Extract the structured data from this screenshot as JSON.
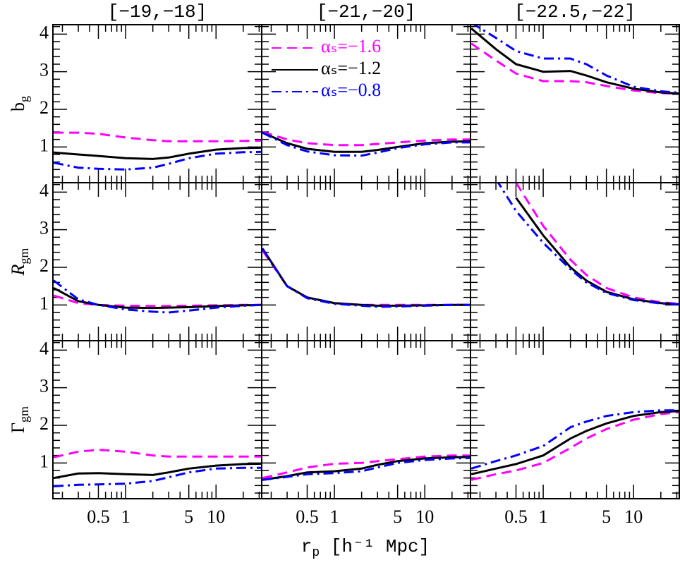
{
  "x_label": {
    "text": "r",
    "sub": "p",
    "rest": " [h⁻¹ Mpc]"
  },
  "chart_data": [
    {
      "type": "line",
      "title": "[−19,−18]",
      "ylabel": {
        "text": "b",
        "sub": "g"
      },
      "xlog": true,
      "xlim": [
        0.157,
        32
      ],
      "ylim": [
        0.05,
        4.25
      ],
      "xticks": [
        0.5,
        1,
        5,
        10
      ],
      "xminorticks": [
        0.2,
        0.3,
        0.4,
        0.6,
        0.7,
        0.8,
        0.9,
        2,
        3,
        4,
        6,
        7,
        8,
        9,
        20,
        30
      ],
      "yticks": [
        1,
        2,
        3,
        4
      ],
      "yminorticks": [
        0.2,
        0.4,
        0.6,
        0.8,
        1.2,
        1.4,
        1.6,
        1.8,
        2.2,
        2.4,
        2.6,
        2.8,
        3.2,
        3.4,
        3.6,
        3.8,
        4.2
      ],
      "x": [
        0.16,
        0.3,
        0.5,
        1,
        2,
        3,
        5,
        10,
        20,
        32
      ],
      "series": [
        {
          "color": "#ff00ff",
          "linestyle": "dashed",
          "values": [
            1.38,
            1.38,
            1.35,
            1.25,
            1.18,
            1.15,
            1.15,
            1.15,
            1.16,
            1.17
          ]
        },
        {
          "color": "#000000",
          "linestyle": "solid",
          "values": [
            0.85,
            0.8,
            0.76,
            0.7,
            0.68,
            0.72,
            0.82,
            0.93,
            0.97,
            0.98
          ]
        },
        {
          "color": "#0000ff",
          "linestyle": "dashdot",
          "values": [
            0.58,
            0.45,
            0.42,
            0.4,
            0.45,
            0.55,
            0.7,
            0.82,
            0.86,
            0.87
          ]
        }
      ]
    },
    {
      "type": "line",
      "title": "[−21,−20]",
      "legend": "upper left",
      "xlog": true,
      "xlim": [
        0.157,
        32
      ],
      "ylim": [
        0.05,
        4.25
      ],
      "xticks": [
        0.5,
        1,
        5,
        10
      ],
      "xminorticks": [
        0.2,
        0.3,
        0.4,
        0.6,
        0.7,
        0.8,
        0.9,
        2,
        3,
        4,
        6,
        7,
        8,
        9,
        20,
        30
      ],
      "yticks": [
        1,
        2,
        3,
        4
      ],
      "yminorticks": [
        0.2,
        0.4,
        0.6,
        0.8,
        1.2,
        1.4,
        1.6,
        1.8,
        2.2,
        2.4,
        2.6,
        2.8,
        3.2,
        3.4,
        3.6,
        3.8,
        4.2
      ],
      "x": [
        0.16,
        0.3,
        0.5,
        1,
        2,
        3,
        5,
        10,
        20,
        32
      ],
      "series": [
        {
          "name": "αₛ=−1.6",
          "color": "#ff00ff",
          "linestyle": "dashed",
          "values": [
            1.4,
            1.2,
            1.1,
            1.05,
            1.05,
            1.08,
            1.12,
            1.17,
            1.2,
            1.2
          ]
        },
        {
          "name": "αₛ=−1.2",
          "color": "#000000",
          "linestyle": "solid",
          "values": [
            1.38,
            1.1,
            0.95,
            0.87,
            0.87,
            0.92,
            1.0,
            1.1,
            1.14,
            1.15
          ]
        },
        {
          "name": "αₛ=−0.8",
          "color": "#0000ff",
          "linestyle": "dashdot",
          "values": [
            1.38,
            1.05,
            0.88,
            0.78,
            0.77,
            0.85,
            0.97,
            1.07,
            1.12,
            1.12
          ]
        }
      ]
    },
    {
      "type": "line",
      "title": "[−22.5,−22]",
      "xlog": true,
      "xlim": [
        0.157,
        32
      ],
      "ylim": [
        0.05,
        4.25
      ],
      "xticks": [
        0.5,
        1,
        5,
        10
      ],
      "xminorticks": [
        0.2,
        0.3,
        0.4,
        0.6,
        0.7,
        0.8,
        0.9,
        2,
        3,
        4,
        6,
        7,
        8,
        9,
        20,
        30
      ],
      "yticks": [
        1,
        2,
        3,
        4
      ],
      "yminorticks": [
        0.2,
        0.4,
        0.6,
        0.8,
        1.2,
        1.4,
        1.6,
        1.8,
        2.2,
        2.4,
        2.6,
        2.8,
        3.2,
        3.4,
        3.6,
        3.8,
        4.2
      ],
      "x": [
        0.16,
        0.3,
        0.5,
        1,
        2,
        3,
        5,
        10,
        20,
        32
      ],
      "series": [
        {
          "color": "#ff00ff",
          "linestyle": "dashed",
          "values": [
            3.75,
            3.3,
            2.95,
            2.75,
            2.75,
            2.72,
            2.62,
            2.5,
            2.43,
            2.42
          ]
        },
        {
          "color": "#000000",
          "linestyle": "solid",
          "values": [
            4.15,
            3.6,
            3.2,
            3.0,
            3.02,
            2.9,
            2.72,
            2.55,
            2.45,
            2.42
          ]
        },
        {
          "color": "#0000ff",
          "linestyle": "dashdot",
          "values": [
            4.3,
            3.9,
            3.55,
            3.35,
            3.35,
            3.2,
            2.9,
            2.6,
            2.48,
            2.44
          ]
        }
      ]
    },
    {
      "type": "line",
      "ylabel": {
        "text": "R",
        "sub": "gm"
      },
      "xlog": true,
      "xlim": [
        0.157,
        32
      ],
      "ylim": [
        0.05,
        4.25
      ],
      "xticks": [
        0.5,
        1,
        5,
        10
      ],
      "xminorticks": [
        0.2,
        0.3,
        0.4,
        0.6,
        0.7,
        0.8,
        0.9,
        2,
        3,
        4,
        6,
        7,
        8,
        9,
        20,
        30
      ],
      "yticks": [
        1,
        2,
        3,
        4
      ],
      "yminorticks": [
        0.2,
        0.4,
        0.6,
        0.8,
        1.2,
        1.4,
        1.6,
        1.8,
        2.2,
        2.4,
        2.6,
        2.8,
        3.2,
        3.4,
        3.6,
        3.8,
        4.2
      ],
      "x": [
        0.16,
        0.3,
        0.5,
        1,
        2,
        3,
        5,
        10,
        20,
        32
      ],
      "series": [
        {
          "color": "#ff00ff",
          "linestyle": "dashed",
          "values": [
            1.25,
            1.05,
            1.0,
            0.98,
            0.97,
            0.97,
            0.98,
            0.99,
            1.0,
            1.0
          ]
        },
        {
          "color": "#000000",
          "linestyle": "solid",
          "values": [
            1.45,
            1.1,
            1.0,
            0.93,
            0.92,
            0.93,
            0.94,
            0.97,
            0.99,
            1.0
          ]
        },
        {
          "color": "#0000ff",
          "linestyle": "dashdot",
          "values": [
            1.65,
            1.15,
            1.0,
            0.88,
            0.82,
            0.8,
            0.85,
            0.93,
            0.98,
            1.0
          ]
        }
      ]
    },
    {
      "type": "line",
      "xlog": true,
      "xlim": [
        0.157,
        32
      ],
      "ylim": [
        0.05,
        4.25
      ],
      "xticks": [
        0.5,
        1,
        5,
        10
      ],
      "xminorticks": [
        0.2,
        0.3,
        0.4,
        0.6,
        0.7,
        0.8,
        0.9,
        2,
        3,
        4,
        6,
        7,
        8,
        9,
        20,
        30
      ],
      "yticks": [
        1,
        2,
        3,
        4
      ],
      "yminorticks": [
        0.2,
        0.4,
        0.6,
        0.8,
        1.2,
        1.4,
        1.6,
        1.8,
        2.2,
        2.4,
        2.6,
        2.8,
        3.2,
        3.4,
        3.6,
        3.8,
        4.2
      ],
      "x": [
        0.16,
        0.3,
        0.5,
        1,
        2,
        3,
        5,
        10,
        20,
        32
      ],
      "series": [
        {
          "color": "#ff00ff",
          "linestyle": "dashed",
          "values": [
            2.45,
            1.5,
            1.2,
            1.05,
            1.0,
            1.0,
            1.0,
            1.0,
            1.0,
            1.0
          ]
        },
        {
          "color": "#000000",
          "linestyle": "solid",
          "values": [
            2.5,
            1.5,
            1.2,
            1.05,
            1.0,
            0.98,
            0.98,
            0.99,
            1.0,
            1.0
          ]
        },
        {
          "color": "#0000ff",
          "linestyle": "dashdot",
          "values": [
            2.5,
            1.5,
            1.18,
            1.03,
            0.98,
            0.95,
            0.96,
            0.98,
            1.0,
            1.0
          ]
        }
      ]
    },
    {
      "type": "line",
      "xlog": true,
      "xlim": [
        0.157,
        32
      ],
      "ylim": [
        0.05,
        4.25
      ],
      "xticks": [
        0.5,
        1,
        5,
        10
      ],
      "xminorticks": [
        0.2,
        0.3,
        0.4,
        0.6,
        0.7,
        0.8,
        0.9,
        2,
        3,
        4,
        6,
        7,
        8,
        9,
        20,
        30
      ],
      "yticks": [
        1,
        2,
        3,
        4
      ],
      "yminorticks": [
        0.2,
        0.4,
        0.6,
        0.8,
        1.2,
        1.4,
        1.6,
        1.8,
        2.2,
        2.4,
        2.6,
        2.8,
        3.2,
        3.4,
        3.6,
        3.8,
        4.2
      ],
      "x": [
        0.16,
        0.3,
        0.5,
        1,
        2,
        3,
        5,
        10,
        20,
        32
      ],
      "series": [
        {
          "color": "#ff00ff",
          "linestyle": "dashed",
          "values": [
            null,
            null,
            4.25,
            3.1,
            2.2,
            1.8,
            1.45,
            1.2,
            1.07,
            1.03
          ]
        },
        {
          "color": "#000000",
          "linestyle": "solid",
          "values": [
            null,
            null,
            3.85,
            2.85,
            2.0,
            1.65,
            1.35,
            1.15,
            1.05,
            1.02
          ]
        },
        {
          "color": "#0000ff",
          "linestyle": "dashdot",
          "values": [
            null,
            4.35,
            3.5,
            2.65,
            1.95,
            1.6,
            1.32,
            1.13,
            1.04,
            1.02
          ]
        }
      ]
    },
    {
      "type": "line",
      "ylabel": {
        "text": "Γ",
        "sub": "gm"
      },
      "xlog": true,
      "xlim": [
        0.157,
        32
      ],
      "ylim": [
        0.05,
        4.25
      ],
      "xticks": [
        0.5,
        1,
        5,
        10
      ],
      "xminorticks": [
        0.2,
        0.3,
        0.4,
        0.6,
        0.7,
        0.8,
        0.9,
        2,
        3,
        4,
        6,
        7,
        8,
        9,
        20,
        30
      ],
      "yticks": [
        1,
        2,
        3,
        4
      ],
      "yminorticks": [
        0.2,
        0.4,
        0.6,
        0.8,
        1.2,
        1.4,
        1.6,
        1.8,
        2.2,
        2.4,
        2.6,
        2.8,
        3.2,
        3.4,
        3.6,
        3.8,
        4.2
      ],
      "x": [
        0.16,
        0.3,
        0.5,
        1,
        2,
        3,
        5,
        10,
        20,
        32
      ],
      "series": [
        {
          "color": "#ff00ff",
          "linestyle": "dashed",
          "values": [
            1.15,
            1.3,
            1.35,
            1.3,
            1.2,
            1.17,
            1.17,
            1.17,
            1.17,
            1.17
          ]
        },
        {
          "color": "#000000",
          "linestyle": "solid",
          "values": [
            0.6,
            0.72,
            0.73,
            0.7,
            0.68,
            0.75,
            0.85,
            0.93,
            0.97,
            0.98
          ]
        },
        {
          "color": "#0000ff",
          "linestyle": "dashdot",
          "values": [
            0.38,
            0.42,
            0.43,
            0.45,
            0.52,
            0.62,
            0.75,
            0.85,
            0.87,
            0.87
          ]
        }
      ]
    },
    {
      "type": "line",
      "xlog": true,
      "xlim": [
        0.157,
        32
      ],
      "ylim": [
        0.05,
        4.25
      ],
      "xticks": [
        0.5,
        1,
        5,
        10
      ],
      "xminorticks": [
        0.2,
        0.3,
        0.4,
        0.6,
        0.7,
        0.8,
        0.9,
        2,
        3,
        4,
        6,
        7,
        8,
        9,
        20,
        30
      ],
      "yticks": [
        1,
        2,
        3,
        4
      ],
      "yminorticks": [
        0.2,
        0.4,
        0.6,
        0.8,
        1.2,
        1.4,
        1.6,
        1.8,
        2.2,
        2.4,
        2.6,
        2.8,
        3.2,
        3.4,
        3.6,
        3.8,
        4.2
      ],
      "x": [
        0.16,
        0.3,
        0.5,
        1,
        2,
        3,
        5,
        10,
        20,
        32
      ],
      "series": [
        {
          "color": "#ff00ff",
          "linestyle": "dashed",
          "values": [
            0.6,
            0.75,
            0.88,
            0.98,
            1.0,
            1.05,
            1.1,
            1.17,
            1.2,
            1.2
          ]
        },
        {
          "color": "#000000",
          "linestyle": "solid",
          "values": [
            0.55,
            0.65,
            0.75,
            0.78,
            0.85,
            0.95,
            1.05,
            1.12,
            1.15,
            1.16
          ]
        },
        {
          "color": "#0000ff",
          "linestyle": "dashdot",
          "values": [
            0.55,
            0.63,
            0.7,
            0.73,
            0.78,
            0.88,
            1.0,
            1.08,
            1.12,
            1.13
          ]
        }
      ]
    },
    {
      "type": "line",
      "xlog": true,
      "xlim": [
        0.157,
        32
      ],
      "ylim": [
        0.05,
        4.25
      ],
      "xticks": [
        0.5,
        1,
        5,
        10
      ],
      "xminorticks": [
        0.2,
        0.3,
        0.4,
        0.6,
        0.7,
        0.8,
        0.9,
        2,
        3,
        4,
        6,
        7,
        8,
        9,
        20,
        30
      ],
      "yticks": [
        1,
        2,
        3,
        4
      ],
      "yminorticks": [
        0.2,
        0.4,
        0.6,
        0.8,
        1.2,
        1.4,
        1.6,
        1.8,
        2.2,
        2.4,
        2.6,
        2.8,
        3.2,
        3.4,
        3.6,
        3.8,
        4.2
      ],
      "x": [
        0.16,
        0.3,
        0.5,
        1,
        2,
        3,
        5,
        10,
        20,
        32
      ],
      "series": [
        {
          "color": "#ff00ff",
          "linestyle": "dashed",
          "values": [
            0.55,
            0.7,
            0.8,
            1.0,
            1.4,
            1.65,
            1.9,
            2.15,
            2.3,
            2.35
          ]
        },
        {
          "color": "#000000",
          "linestyle": "solid",
          "values": [
            0.7,
            0.85,
            0.97,
            1.2,
            1.65,
            1.85,
            2.05,
            2.25,
            2.35,
            2.38
          ]
        },
        {
          "color": "#0000ff",
          "linestyle": "dashdot",
          "values": [
            0.85,
            1.05,
            1.2,
            1.45,
            1.95,
            2.1,
            2.25,
            2.35,
            2.4,
            2.4
          ]
        }
      ]
    }
  ]
}
